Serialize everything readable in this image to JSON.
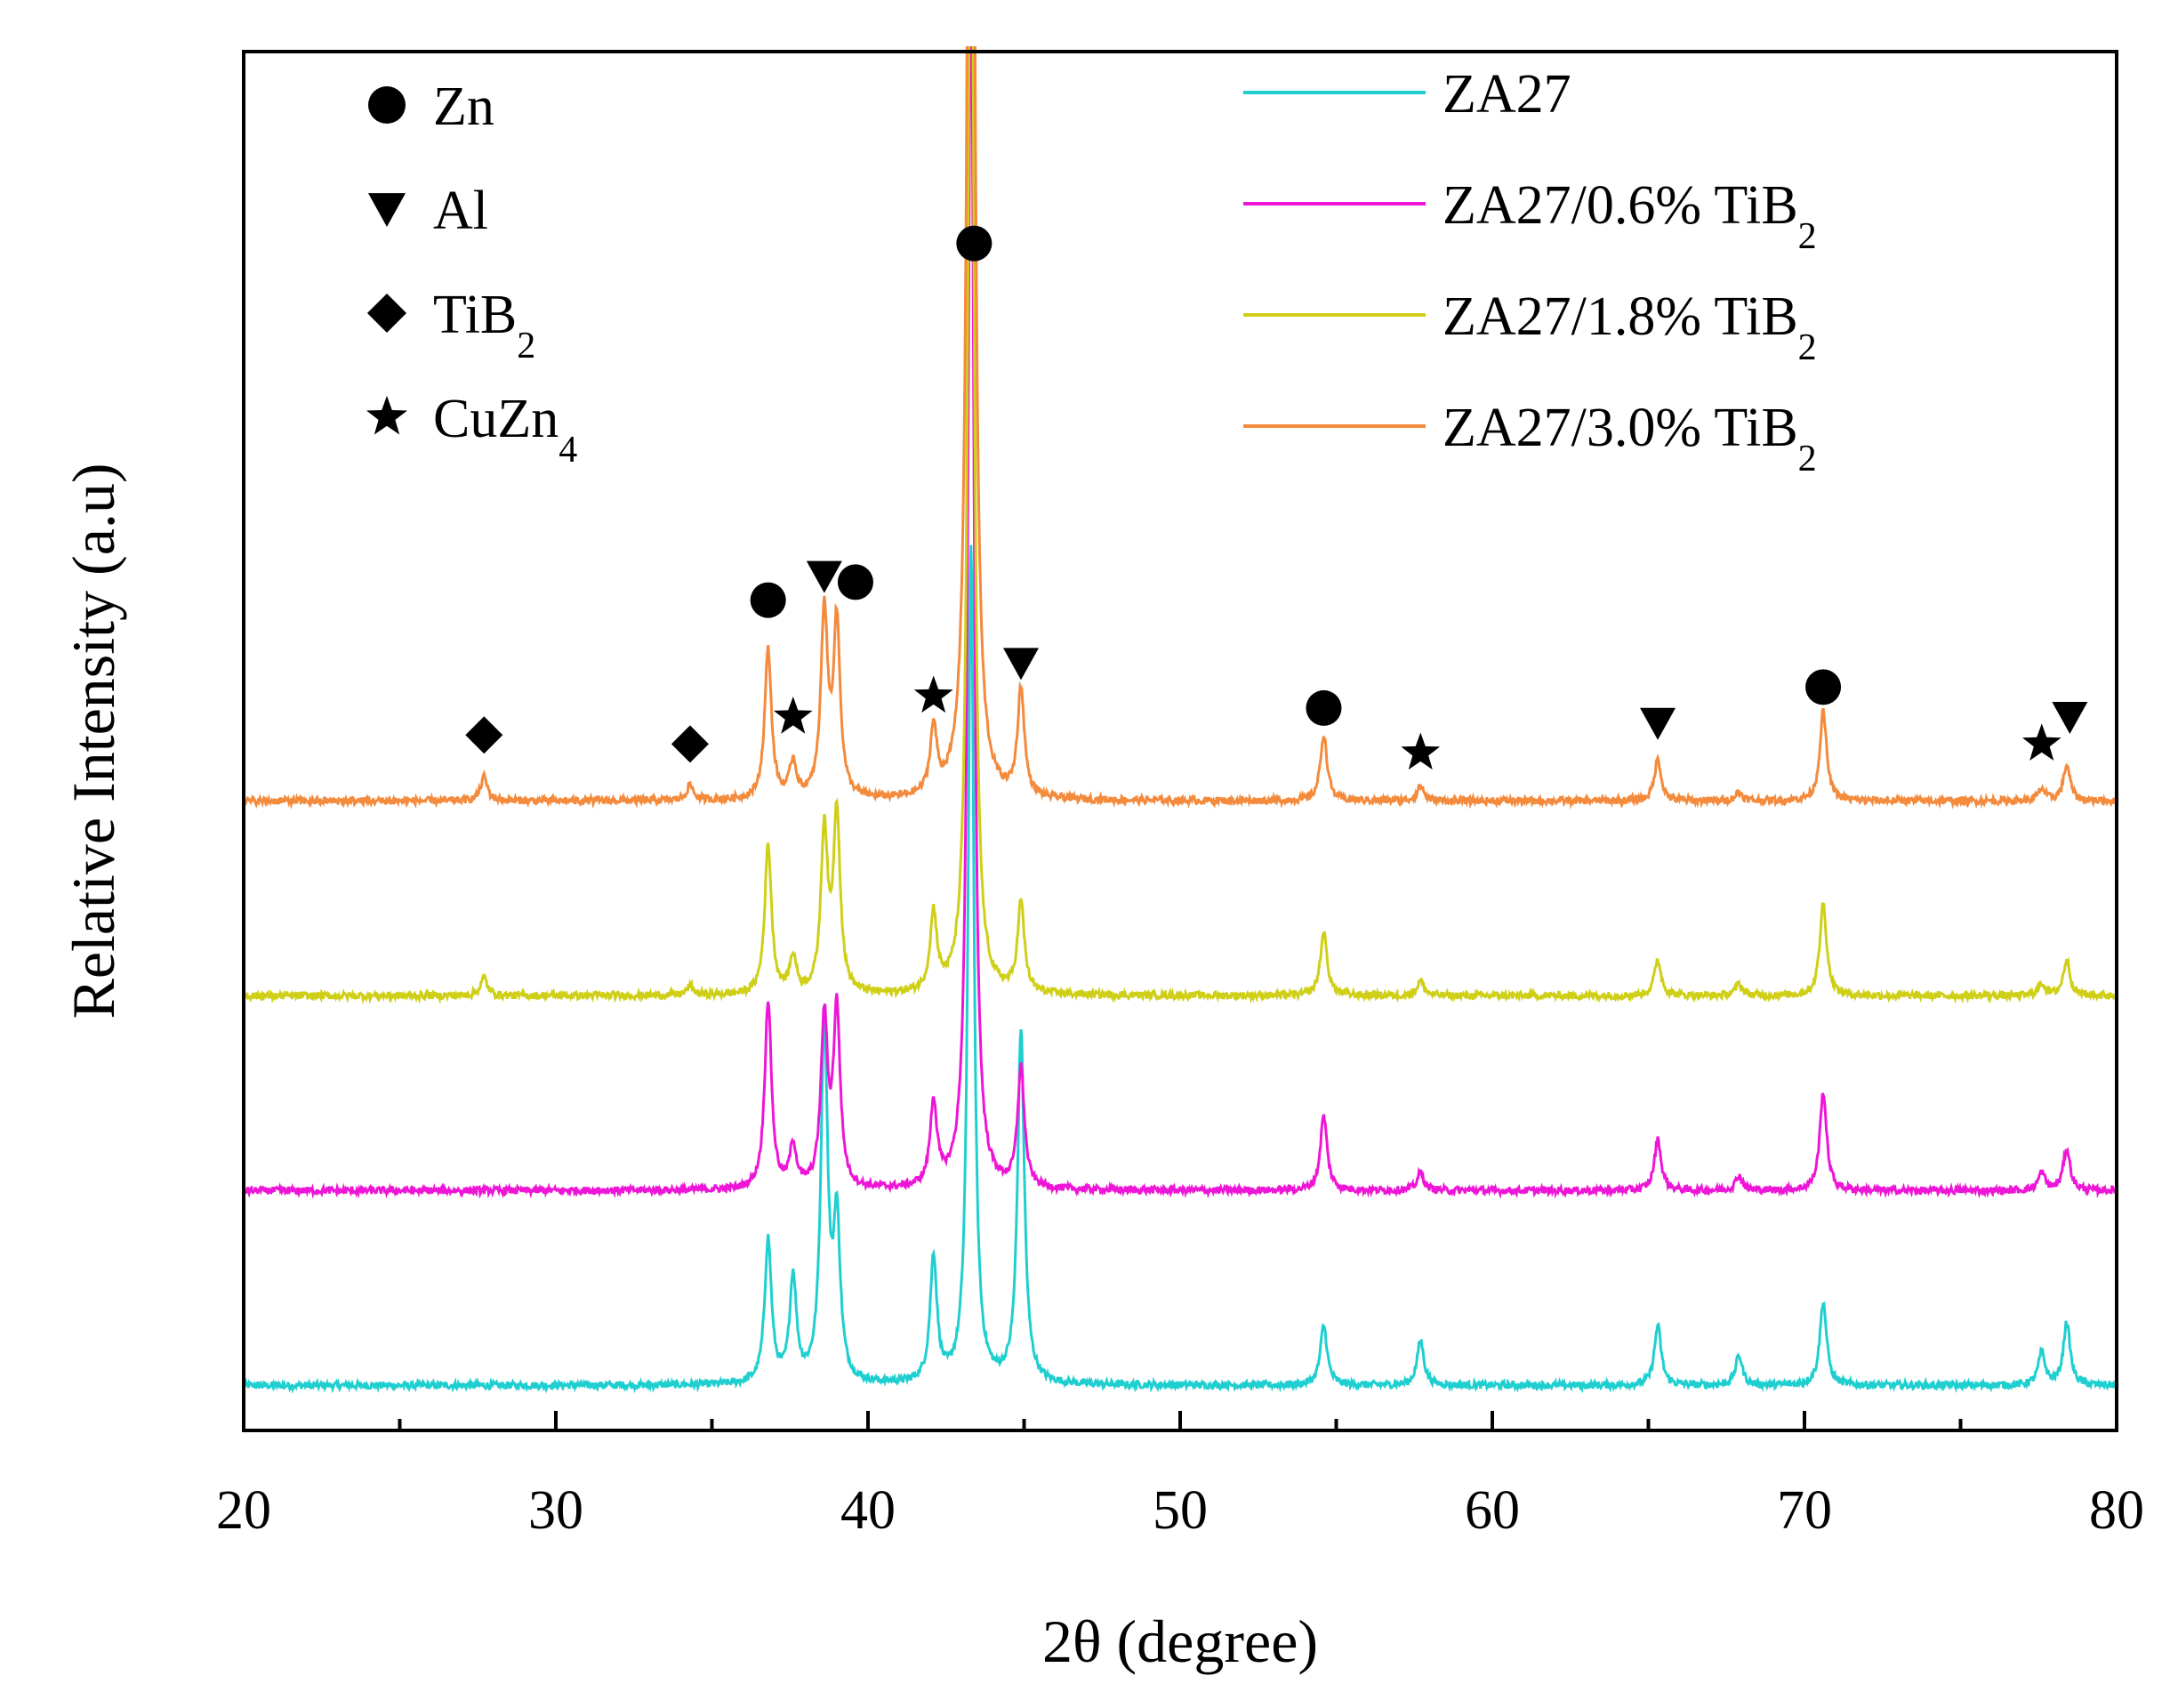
{
  "chart_data": {
    "type": "line",
    "title": "",
    "xlabel": "2θ (degree)",
    "ylabel": "Relative Intensity (a.u)",
    "xlim": [
      20,
      80
    ],
    "ylim": [
      0,
      460
    ],
    "xticks": [
      20,
      30,
      40,
      50,
      60,
      70,
      80
    ],
    "xtick_labels": [
      "20",
      "30",
      "40",
      "50",
      "60",
      "70",
      "80"
    ],
    "grid": false,
    "legend_position": "top-right",
    "series": [
      {
        "name": "ZA27",
        "sub": "",
        "label_main": "ZA27",
        "color": "#1fcfd0",
        "offset": 15,
        "peaks": [
          [
            36.8,
            48
          ],
          [
            37.6,
            35
          ],
          [
            38.6,
            120
          ],
          [
            39.0,
            52
          ],
          [
            42.1,
            42
          ],
          [
            43.3,
            280
          ],
          [
            44.9,
            118
          ],
          [
            54.6,
            20
          ],
          [
            57.7,
            15
          ],
          [
            65.3,
            20
          ],
          [
            67.9,
            10
          ],
          [
            70.6,
            28
          ],
          [
            77.6,
            11
          ],
          [
            78.4,
            21
          ]
        ]
      },
      {
        "name": "ZA27/0.6% TiB2",
        "sub": "2",
        "label_main": "ZA27/0.6% TiB",
        "color": "#ee16d6",
        "offset": 80,
        "peaks": [
          [
            36.8,
            63
          ],
          [
            37.6,
            14
          ],
          [
            38.6,
            56
          ],
          [
            39.0,
            59
          ],
          [
            42.1,
            28
          ],
          [
            43.3,
            420
          ],
          [
            44.9,
            40
          ],
          [
            54.6,
            25
          ],
          [
            57.7,
            6
          ],
          [
            65.3,
            17
          ],
          [
            67.9,
            5
          ],
          [
            70.6,
            33
          ],
          [
            77.6,
            6
          ],
          [
            78.4,
            14
          ]
        ]
      },
      {
        "name": "ZA27/1.8% TiB2",
        "sub": "2",
        "label_main": "ZA27/1.8% TiB",
        "color": "#cfcf18",
        "offset": 145,
        "peaks": [
          [
            27.7,
            6
          ],
          [
            34.3,
            3
          ],
          [
            36.8,
            50
          ],
          [
            37.6,
            12
          ],
          [
            38.6,
            54
          ],
          [
            39.0,
            60
          ],
          [
            42.1,
            26
          ],
          [
            43.3,
            430
          ],
          [
            44.9,
            30
          ],
          [
            54.6,
            21
          ],
          [
            57.7,
            5
          ],
          [
            65.3,
            12
          ],
          [
            67.9,
            4
          ],
          [
            70.6,
            31
          ],
          [
            77.6,
            4
          ],
          [
            78.4,
            12
          ]
        ]
      },
      {
        "name": "ZA27/3.0% TiB2",
        "sub": "2",
        "label_main": "ZA27/3.0% TiB",
        "color": "#f38a3c",
        "offset": 210,
        "peaks": [
          [
            27.7,
            8
          ],
          [
            34.3,
            5
          ],
          [
            36.8,
            50
          ],
          [
            37.6,
            12
          ],
          [
            38.6,
            62
          ],
          [
            39.0,
            58
          ],
          [
            42.1,
            22
          ],
          [
            43.3,
            600
          ],
          [
            44.9,
            36
          ],
          [
            54.6,
            22
          ],
          [
            57.7,
            5
          ],
          [
            65.3,
            14
          ],
          [
            67.9,
            3
          ],
          [
            70.6,
            30
          ],
          [
            77.6,
            4
          ],
          [
            78.4,
            12
          ]
        ]
      }
    ],
    "phase_legend": [
      {
        "symbol": "circle",
        "label": "Zn",
        "sub": ""
      },
      {
        "symbol": "triangle-down",
        "label": "Al",
        "sub": ""
      },
      {
        "symbol": "diamond",
        "label": "TiB",
        "sub": "2"
      },
      {
        "symbol": "star",
        "label": "CuZn",
        "sub": "4"
      }
    ],
    "peak_markers": [
      {
        "symbol": "diamond",
        "x": 27.7,
        "y": 232
      },
      {
        "symbol": "diamond",
        "x": 34.3,
        "y": 229
      },
      {
        "symbol": "circle",
        "x": 36.8,
        "y": 277
      },
      {
        "symbol": "star",
        "x": 37.6,
        "y": 238
      },
      {
        "symbol": "triangle-down",
        "x": 38.6,
        "y": 285
      },
      {
        "symbol": "circle",
        "x": 39.6,
        "y": 283
      },
      {
        "symbol": "star",
        "x": 42.1,
        "y": 245
      },
      {
        "symbol": "circle",
        "x": 43.4,
        "y": 396
      },
      {
        "symbol": "triangle-down",
        "x": 44.9,
        "y": 256
      },
      {
        "symbol": "circle",
        "x": 54.6,
        "y": 241
      },
      {
        "symbol": "star",
        "x": 57.7,
        "y": 226
      },
      {
        "symbol": "triangle-down",
        "x": 65.3,
        "y": 236
      },
      {
        "symbol": "circle",
        "x": 70.6,
        "y": 248
      },
      {
        "symbol": "star",
        "x": 77.6,
        "y": 229
      },
      {
        "symbol": "triangle-down",
        "x": 78.5,
        "y": 238
      }
    ]
  }
}
